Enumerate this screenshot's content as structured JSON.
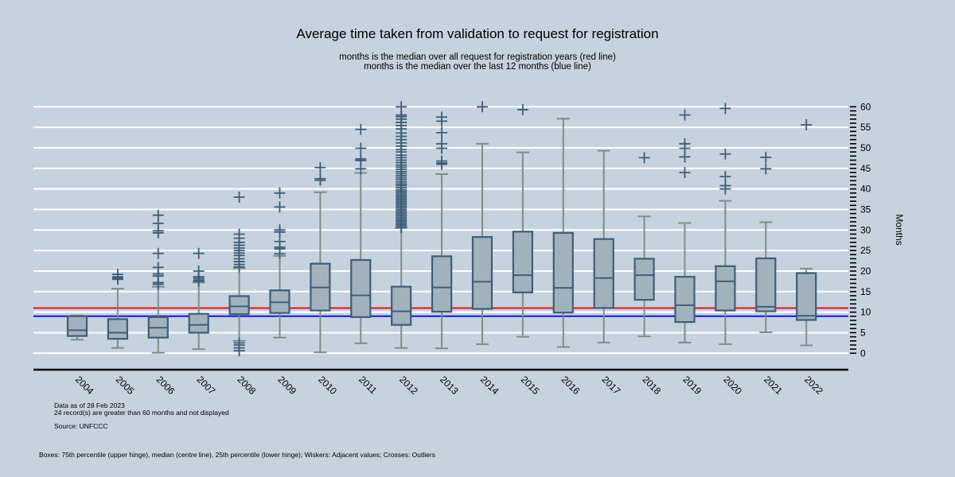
{
  "title": "Average time taken from validation to request for registration",
  "subtitle_lines": [
    "months is the median over all request for registration years (red line)",
    "months is the median over the last 12 months (blue line)"
  ],
  "notes": [
    "Data as of 28 Feb 2023",
    "24 record(s) are greater than 60 months and not displayed",
    "Source: UNFCCC"
  ],
  "footer": "Boxes: 75th percentile (upper hinge), median (centre line), 25th percentile (lower hinge); Wiskers: Adjacent values; Crosses: Outliers",
  "chart_data": {
    "type": "boxplot",
    "ylabel": "Months",
    "ylim": [
      0,
      60
    ],
    "yticks": [
      0,
      5,
      10,
      15,
      20,
      25,
      30,
      35,
      40,
      45,
      50,
      55,
      60
    ],
    "y_axis_position": "right",
    "grid": true,
    "reference_lines": [
      {
        "value": 11.0,
        "color": "#e8141a"
      },
      {
        "value": 9.0,
        "color": "#1414e8"
      }
    ],
    "colors": {
      "box_fill": "#a2b2bd",
      "box_stroke": "#3e5e78",
      "whisker": "#7a9088",
      "outlier": "#3e5e78",
      "grid": "#ffffff"
    },
    "categories": [
      "2004",
      "2005",
      "2006",
      "2007",
      "2008",
      "2009",
      "2010",
      "2011",
      "2012",
      "2013",
      "2014",
      "2015",
      "2016",
      "2017",
      "2018",
      "2019",
      "2020",
      "2021",
      "2022"
    ],
    "boxes": [
      {
        "low": 3.3,
        "q1": 4.2,
        "median": 5.6,
        "q3": 9.0,
        "high": 9.2,
        "outliers": []
      },
      {
        "low": 1.3,
        "q1": 3.5,
        "median": 5.0,
        "q3": 8.3,
        "high": 15.7,
        "outliers": [
          18.0,
          18.3,
          18.6,
          19.2
        ]
      },
      {
        "low": 0.1,
        "q1": 3.8,
        "median": 6.2,
        "q3": 8.8,
        "high": 16.2,
        "outliers": [
          16.8,
          17.2,
          18.8,
          19.3,
          20.9,
          24.3,
          29.3,
          29.8,
          31.6,
          33.6
        ]
      },
      {
        "low": 1.0,
        "q1": 5.0,
        "median": 6.9,
        "q3": 9.6,
        "high": 17.2,
        "outliers": [
          17.5,
          17.8,
          18.2,
          18.6,
          20.0,
          24.3
        ]
      },
      {
        "low": 3.0,
        "q1": 9.5,
        "median": 11.4,
        "q3": 13.9,
        "high": 20.7,
        "outliers": [
          0.6,
          1.3,
          2.0,
          2.5,
          21.0,
          21.6,
          22.3,
          23.0,
          23.8,
          24.4,
          25.0,
          25.6,
          26.3,
          27.0,
          28.0,
          29.0,
          38.0
        ]
      },
      {
        "low": 3.8,
        "q1": 9.8,
        "median": 12.4,
        "q3": 15.3,
        "high": 23.7,
        "outliers": [
          24.2,
          25.4,
          25.8,
          27.2,
          29.5,
          30.0,
          35.6,
          39.0
        ]
      },
      {
        "low": 0.2,
        "q1": 10.4,
        "median": 16.0,
        "q3": 21.8,
        "high": 39.2,
        "outliers": [
          42.1,
          42.5,
          45.2
        ]
      },
      {
        "low": 2.4,
        "q1": 8.8,
        "median": 14.1,
        "q3": 22.7,
        "high": 43.9,
        "outliers": [
          44.9,
          46.9,
          47.3,
          49.9,
          54.5
        ]
      },
      {
        "low": 1.3,
        "q1": 6.9,
        "median": 10.2,
        "q3": 16.2,
        "high": 30.5,
        "outliers": [
          30.6,
          31.0,
          31.4,
          31.8,
          32.2,
          32.6,
          33.0,
          33.4,
          33.8,
          34.2,
          34.6,
          35.0,
          35.4,
          35.8,
          36.2,
          36.6,
          37.0,
          37.4,
          37.8,
          38.2,
          38.6,
          39.0,
          39.4,
          39.8,
          40.3,
          40.8,
          41.2,
          41.7,
          42.2,
          42.7,
          43.2,
          43.7,
          44.2,
          44.8,
          45.3,
          45.8,
          46.4,
          47.0,
          47.6,
          48.2,
          49.0,
          49.6,
          50.4,
          51.2,
          52.0,
          52.8,
          53.6,
          54.6,
          55.4,
          56.2,
          57.0,
          57.6,
          58.0,
          60.0
        ]
      },
      {
        "low": 1.2,
        "q1": 10.1,
        "median": 16.0,
        "q3": 23.6,
        "high": 43.6,
        "outliers": [
          46.0,
          46.3,
          46.8,
          49.9,
          51.0,
          53.7,
          56.5,
          57.5
        ]
      },
      {
        "low": 2.2,
        "q1": 10.8,
        "median": 17.4,
        "q3": 28.3,
        "high": 51.0,
        "outliers": [
          60.0
        ]
      },
      {
        "low": 4.0,
        "q1": 14.8,
        "median": 19.0,
        "q3": 29.6,
        "high": 48.9,
        "outliers": [
          59.3
        ]
      },
      {
        "low": 1.5,
        "q1": 9.9,
        "median": 15.9,
        "q3": 29.3,
        "high": 57.1,
        "outliers": []
      },
      {
        "low": 2.6,
        "q1": 11.0,
        "median": 18.3,
        "q3": 27.8,
        "high": 49.3,
        "outliers": []
      },
      {
        "low": 4.1,
        "q1": 13.0,
        "median": 19.0,
        "q3": 23.0,
        "high": 33.3,
        "outliers": [
          47.6
        ]
      },
      {
        "low": 2.6,
        "q1": 7.6,
        "median": 11.7,
        "q3": 18.6,
        "high": 31.7,
        "outliers": [
          44.0,
          47.8,
          49.9,
          51.0,
          58.0
        ]
      },
      {
        "low": 2.2,
        "q1": 10.4,
        "median": 17.5,
        "q3": 21.2,
        "high": 37.1,
        "outliers": [
          40.0,
          40.8,
          43.0,
          48.5,
          59.6
        ]
      },
      {
        "low": 5.1,
        "q1": 10.2,
        "median": 11.3,
        "q3": 23.1,
        "high": 31.9,
        "outliers": [
          44.9,
          47.7
        ]
      },
      {
        "low": 1.9,
        "q1": 8.1,
        "median": 9.1,
        "q3": 19.5,
        "high": 20.6,
        "outliers": [
          55.6
        ]
      }
    ]
  }
}
